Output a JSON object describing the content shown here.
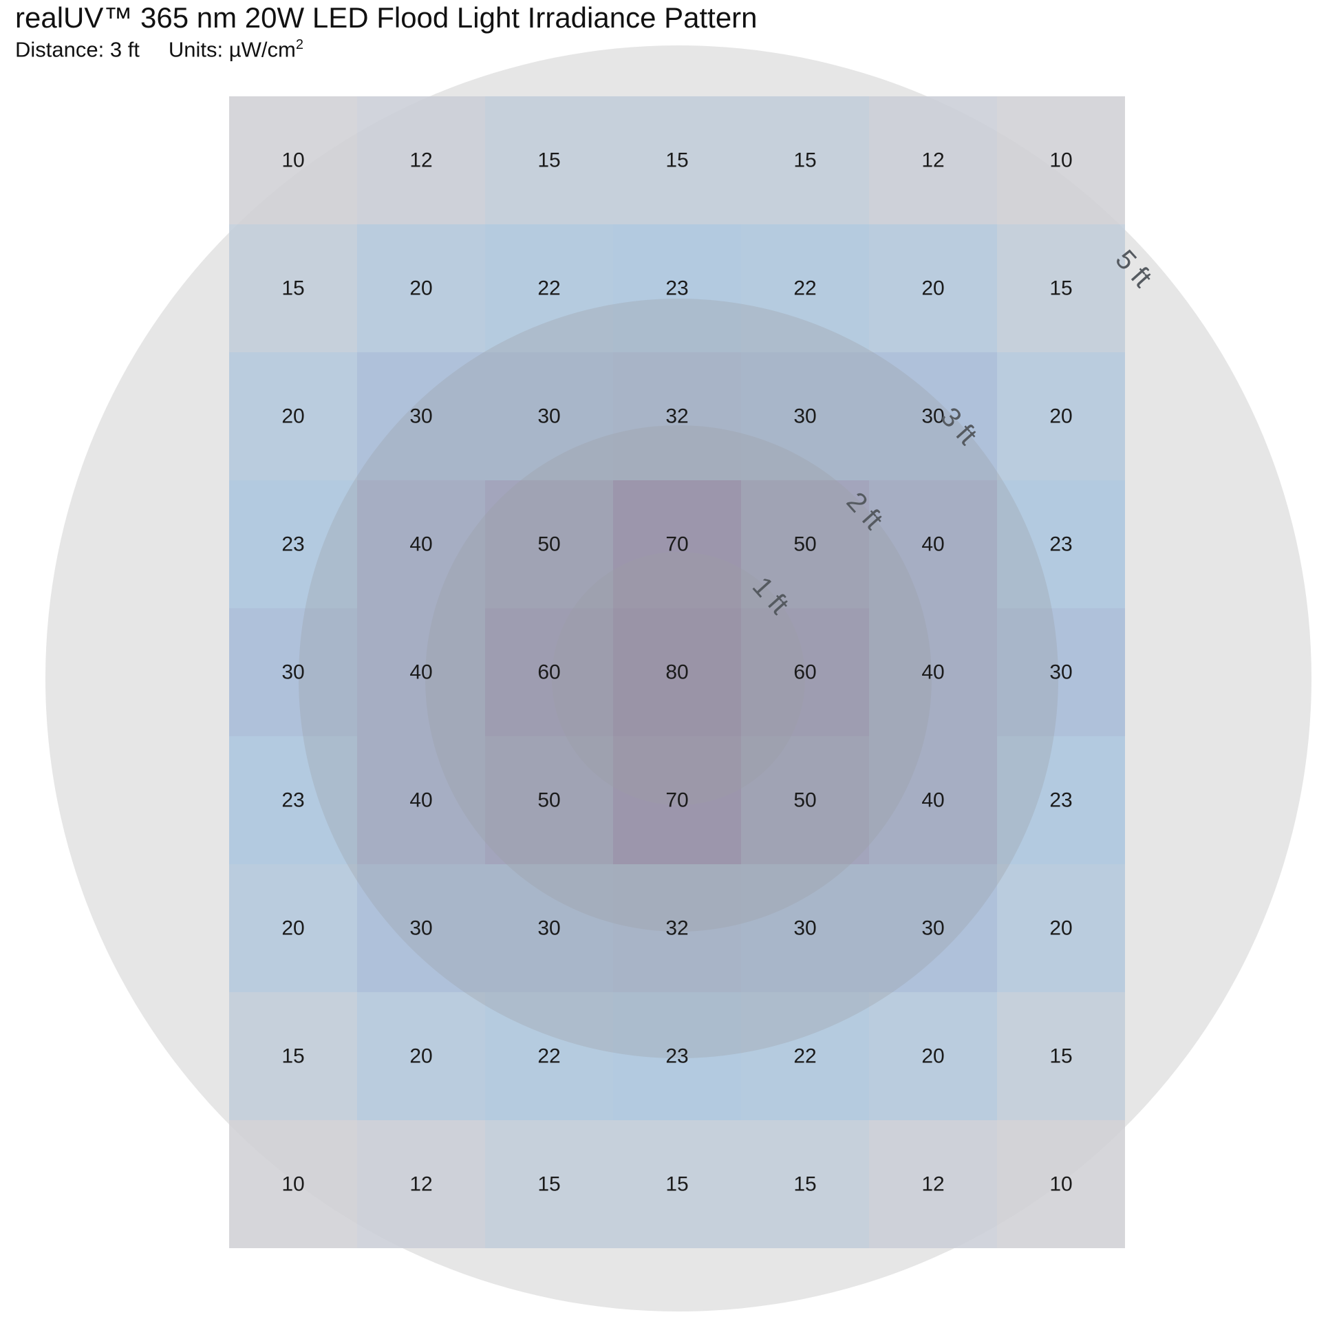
{
  "chart_data": {
    "type": "heatmap",
    "title": "realUV™ 365 nm 20W LED Flood Light Irradiance Pattern",
    "distance_label": "Distance: 3 ft",
    "units_label": "Units: µW/cm",
    "units_superscript": "2",
    "grid": {
      "rows": 9,
      "cols": 7,
      "values": [
        [
          10,
          12,
          15,
          15,
          15,
          12,
          10
        ],
        [
          15,
          20,
          22,
          23,
          22,
          20,
          15
        ],
        [
          20,
          30,
          30,
          32,
          30,
          30,
          20
        ],
        [
          23,
          40,
          50,
          70,
          50,
          40,
          23
        ],
        [
          30,
          40,
          60,
          80,
          60,
          40,
          30
        ],
        [
          23,
          40,
          50,
          70,
          50,
          40,
          23
        ],
        [
          20,
          30,
          30,
          32,
          30,
          30,
          20
        ],
        [
          15,
          20,
          22,
          23,
          22,
          20,
          15
        ],
        [
          10,
          12,
          15,
          15,
          15,
          12,
          10
        ]
      ]
    },
    "rings": [
      {
        "label": "1 ft",
        "radius_ft": 1
      },
      {
        "label": "2 ft",
        "radius_ft": 2
      },
      {
        "label": "3 ft",
        "radius_ft": 3
      },
      {
        "label": "5 ft",
        "radius_ft": 5
      }
    ],
    "colors": {
      "low": "#cfcfd4",
      "mid": "#a9c4de",
      "high": "#8c6fa3",
      "ring_fill": "#9aa0a6",
      "background_circle": "#e6e6e6"
    }
  }
}
